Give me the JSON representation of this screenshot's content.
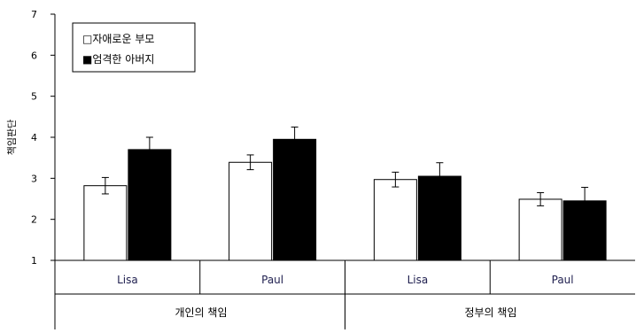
{
  "chart_data": {
    "type": "bar",
    "ylabel": "책임판단",
    "ylim": [
      1,
      7
    ],
    "yticks": [
      "1",
      "2",
      "3",
      "4",
      "5",
      "6",
      "7"
    ],
    "group_labels": [
      "개인의 책임",
      "정부의 책임"
    ],
    "categories": [
      "Lisa",
      "Paul",
      "Lisa",
      "Paul"
    ],
    "series": [
      {
        "name": "자애로운 부모",
        "values": [
          2.82,
          3.39,
          2.97,
          2.49
        ],
        "errors": [
          0.2,
          0.18,
          0.18,
          0.16
        ],
        "color": "#ffffff"
      },
      {
        "name": "엄격한 아버지",
        "values": [
          3.7,
          3.95,
          3.05,
          2.45
        ],
        "errors": [
          0.3,
          0.3,
          0.33,
          0.33
        ],
        "color": "#000000"
      }
    ],
    "legend": {
      "placement": "top-left",
      "items": [
        "□자애로운 부모",
        "■엄격한 아버지"
      ]
    }
  }
}
